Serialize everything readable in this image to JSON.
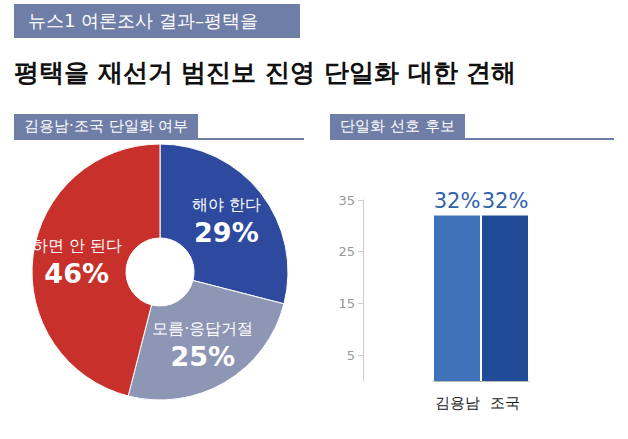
{
  "header": "뉴스1 여론조사 결과–평택을",
  "title": "평택을 재선거 범진보 진영 단일화 대한 견해",
  "chart_data": [
    {
      "type": "pie",
      "title": "김용남·조국 단일화 여부",
      "categories": [
        "해야 한다",
        "모름·응답거절",
        "하면 안 된다"
      ],
      "values": [
        29,
        25,
        46
      ],
      "value_labels": [
        "29%",
        "25%",
        "46%"
      ],
      "colors": [
        "#2d4a9e",
        "#8e96b5",
        "#c8302c"
      ],
      "data_labels": true
    },
    {
      "type": "bar",
      "title": "단일화 선호 후보",
      "categories": [
        "김용남",
        "조국"
      ],
      "values": [
        32,
        32
      ],
      "value_labels": [
        "32%",
        "32%"
      ],
      "colors": [
        "#3f72b8",
        "#1f4b97"
      ],
      "ylim": [
        0,
        35
      ],
      "yticks": [
        5,
        15,
        25,
        35
      ],
      "grid": false,
      "data_labels": true
    }
  ]
}
